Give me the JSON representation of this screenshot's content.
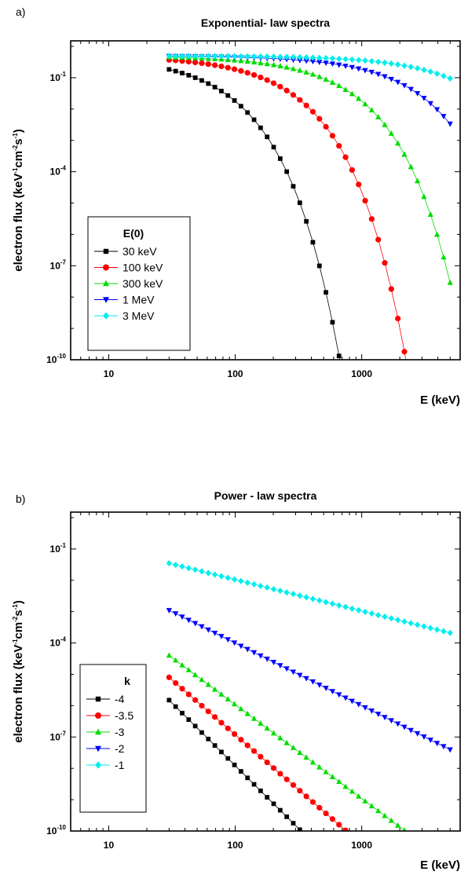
{
  "chart_data": [
    {
      "panel_label": "a)",
      "type": "scatter",
      "title": "Exponential- law  spectra",
      "xlabel": "E (keV)",
      "ylabel_main": "electron  flux  (keV",
      "ylabel_sup1": "-1",
      "ylabel_mid1": "cm",
      "ylabel_sup2": "-2",
      "ylabel_mid2": "s",
      "ylabel_sup3": "-1",
      "ylabel_end": ")",
      "xscale": "log",
      "yscale": "log",
      "xlim": [
        5,
        6000
      ],
      "ylim": [
        1e-10,
        1.5
      ],
      "x_ticks": [
        {
          "value": 10,
          "label": "10"
        },
        {
          "value": 100,
          "label": "100"
        },
        {
          "value": 1000,
          "label": "1000"
        }
      ],
      "y_ticks": [
        {
          "value": 0.1,
          "base": "10",
          "exp": "-1"
        },
        {
          "value": 0.0001,
          "base": "10",
          "exp": "-4"
        },
        {
          "value": 1e-07,
          "base": "10",
          "exp": "-7"
        },
        {
          "value": 1e-10,
          "base": "10",
          "exp": "-10"
        }
      ],
      "legend_title": "E(0)",
      "legend_position": "lower-left",
      "grid": false,
      "model": "exponential",
      "model_amplitude": 0.5,
      "series": [
        {
          "name": "30 keV",
          "param": 30,
          "color": "#000000",
          "marker": "square"
        },
        {
          "name": "100 keV",
          "param": 100,
          "color": "#ff0000",
          "marker": "circle"
        },
        {
          "name": "300 keV",
          "param": 300,
          "color": "#00dd00",
          "marker": "triangle-up"
        },
        {
          "name": "1 MeV",
          "param": 1000,
          "color": "#0000ff",
          "marker": "triangle-down"
        },
        {
          "name": "3 MeV",
          "param": 3000,
          "color": "#00eeee",
          "marker": "diamond"
        }
      ]
    },
    {
      "panel_label": "b)",
      "type": "scatter",
      "title": "Power - law  spectra",
      "xlabel": "E (keV)",
      "ylabel_main": "electron  flux  (keV",
      "ylabel_sup1": "-1",
      "ylabel_mid1": "cm",
      "ylabel_sup2": "-2",
      "ylabel_mid2": "s",
      "ylabel_sup3": "-1",
      "ylabel_end": ")",
      "xscale": "log",
      "yscale": "log",
      "xlim": [
        5,
        6000
      ],
      "ylim": [
        1e-10,
        1.5
      ],
      "x_ticks": [
        {
          "value": 10,
          "label": "10"
        },
        {
          "value": 100,
          "label": "100"
        },
        {
          "value": 1000,
          "label": "1000"
        }
      ],
      "y_ticks": [
        {
          "value": 0.1,
          "base": "10",
          "exp": "-1"
        },
        {
          "value": 0.0001,
          "base": "10",
          "exp": "-4"
        },
        {
          "value": 1e-07,
          "base": "10",
          "exp": "-7"
        },
        {
          "value": 1e-10,
          "base": "10",
          "exp": "-10"
        }
      ],
      "legend_title": "k",
      "legend_position": "lower-left",
      "grid": false,
      "model": "power",
      "series": [
        {
          "name": "-4",
          "param": -4,
          "y_at_30": 1.5e-06,
          "color": "#000000",
          "marker": "square"
        },
        {
          "name": "-3.5",
          "param": -3.5,
          "y_at_30": 8e-06,
          "color": "#ff0000",
          "marker": "circle"
        },
        {
          "name": "-3",
          "param": -3,
          "y_at_30": 4e-05,
          "color": "#00dd00",
          "marker": "triangle-up"
        },
        {
          "name": "-2",
          "param": -2,
          "y_at_30": 0.0011,
          "color": "#0000ff",
          "marker": "triangle-down"
        },
        {
          "name": "-1",
          "param": -1,
          "y_at_30": 0.035,
          "color": "#00eeee",
          "marker": "diamond"
        }
      ]
    }
  ]
}
